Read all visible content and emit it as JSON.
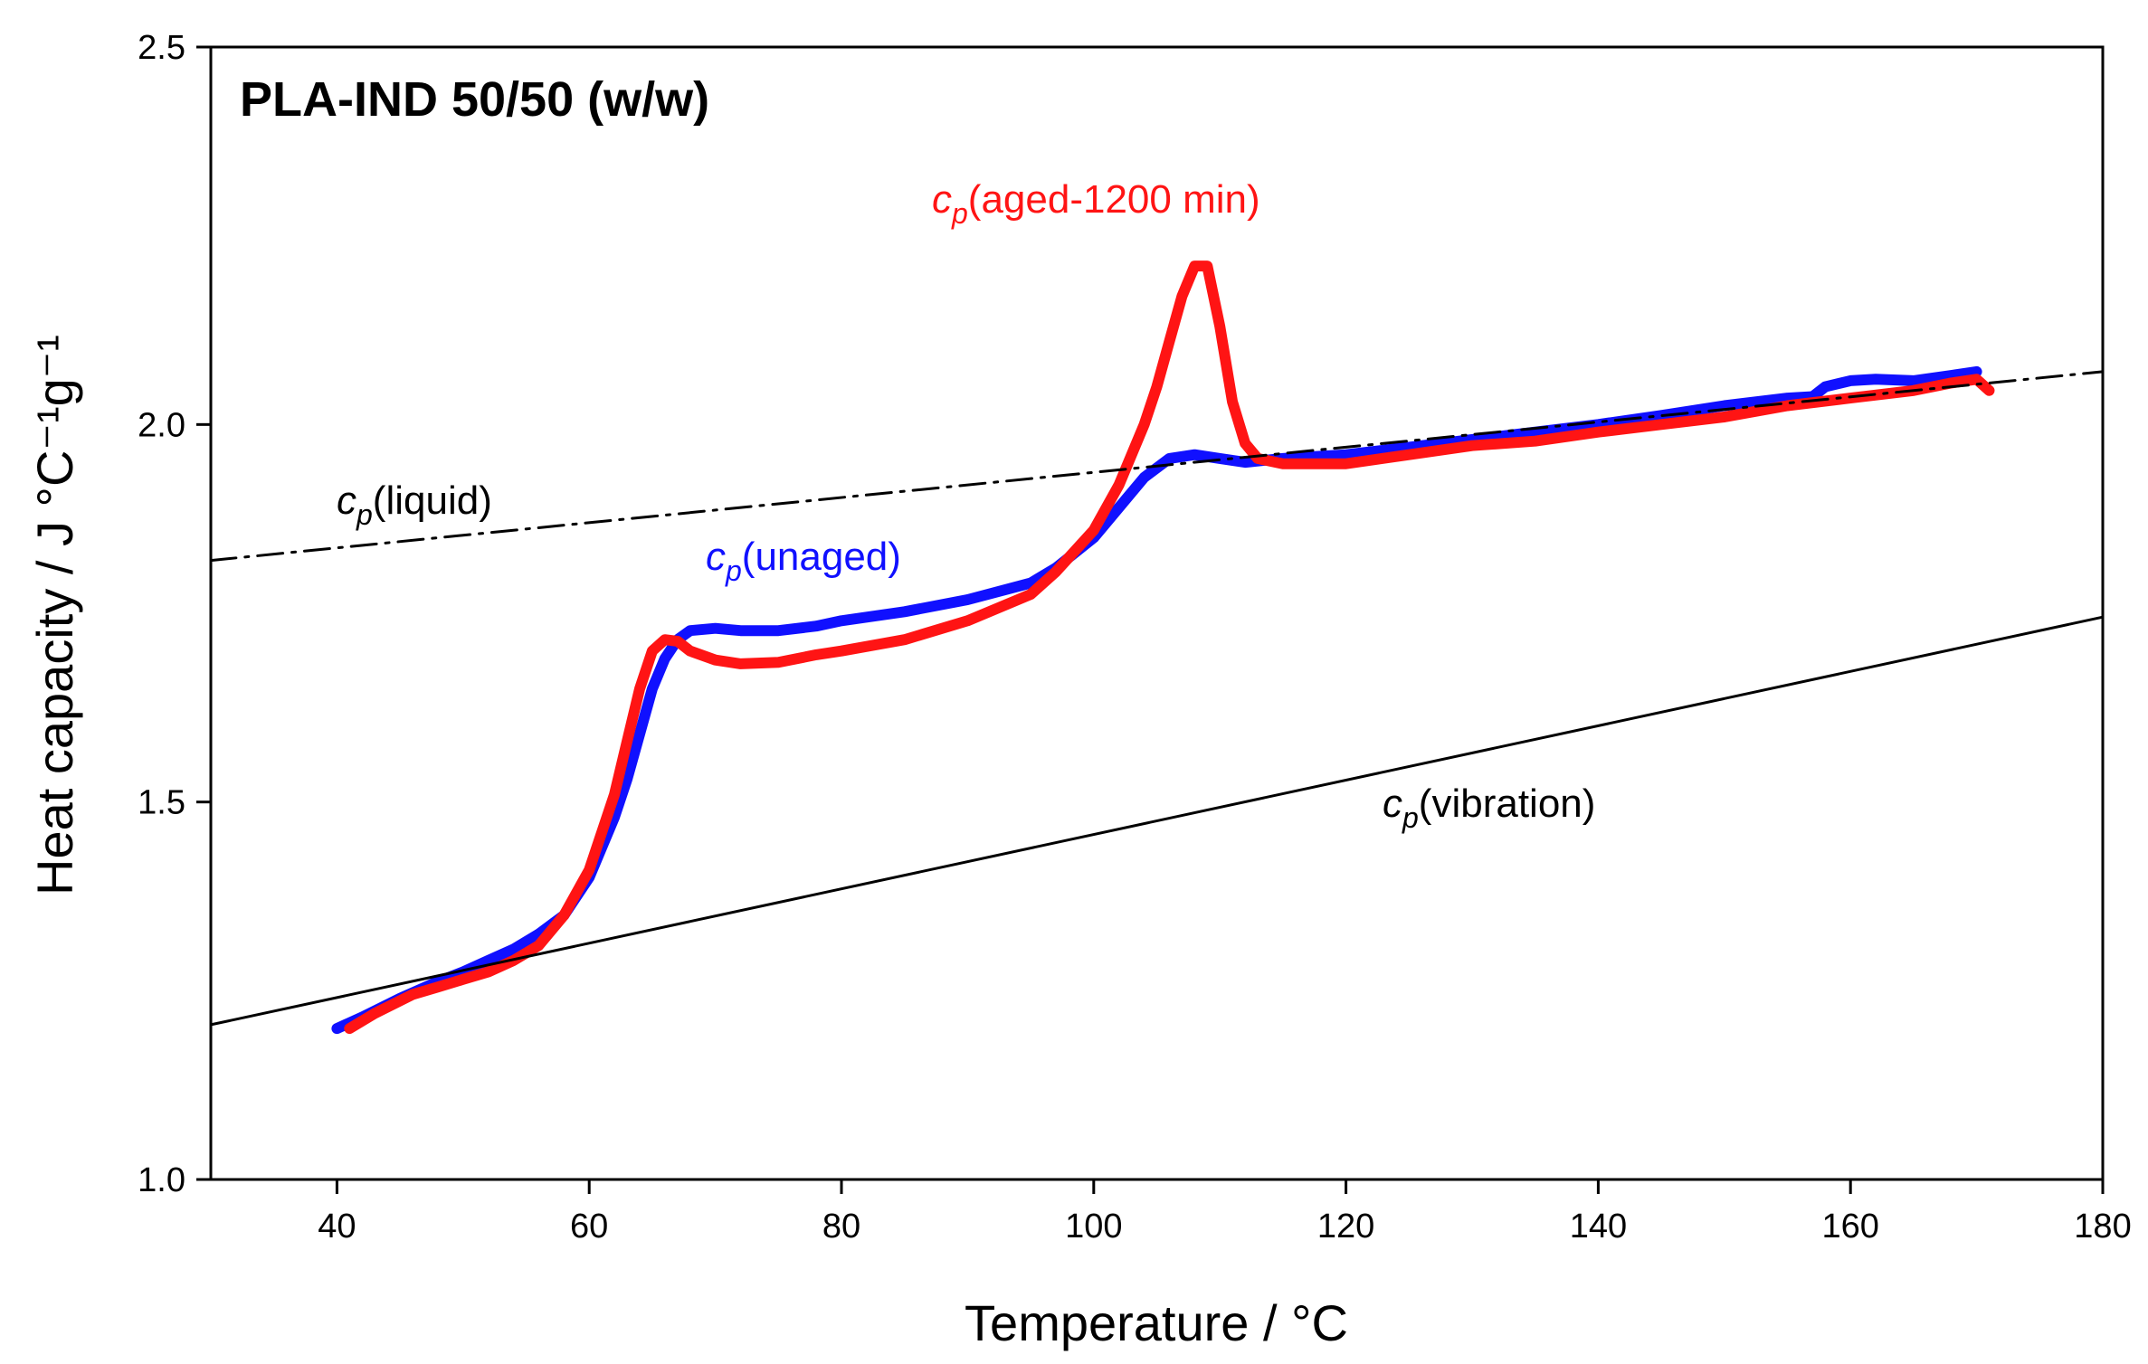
{
  "chart_data": {
    "type": "line",
    "title": "PLA-IND 50/50 (w/w)",
    "xlabel": "Temperature / °C",
    "ylabel": "Heat capacity / J °C⁻¹g⁻¹",
    "xlim": [
      30,
      180
    ],
    "ylim": [
      1.0,
      2.5
    ],
    "xticks": [
      40,
      60,
      80,
      100,
      120,
      140,
      160,
      180
    ],
    "yticks": [
      1.0,
      1.5,
      2.0,
      2.5
    ],
    "xtick_labels": [
      "40",
      "60",
      "80",
      "100",
      "120",
      "140",
      "160",
      "180"
    ],
    "ytick_labels": [
      "1.0",
      "1.5",
      "2.0",
      "2.5"
    ],
    "grid": false,
    "legend": "none",
    "series": [
      {
        "name": "cp(unaged)",
        "color": "#1010ff",
        "x": [
          40,
          42,
          45,
          48,
          50,
          52,
          54,
          56,
          58,
          60,
          62,
          63,
          64,
          65,
          66,
          67,
          68,
          70,
          72,
          75,
          78,
          80,
          85,
          90,
          95,
          97,
          100,
          102,
          104,
          106,
          108,
          110,
          112,
          115,
          120,
          125,
          130,
          135,
          140,
          145,
          150,
          155,
          157,
          158,
          160,
          162,
          165,
          168,
          170
        ],
        "y": [
          1.2,
          1.215,
          1.24,
          1.262,
          1.275,
          1.29,
          1.305,
          1.325,
          1.35,
          1.4,
          1.48,
          1.53,
          1.59,
          1.65,
          1.69,
          1.715,
          1.727,
          1.73,
          1.727,
          1.727,
          1.733,
          1.74,
          1.752,
          1.768,
          1.79,
          1.81,
          1.85,
          1.89,
          1.93,
          1.955,
          1.96,
          1.955,
          1.95,
          1.955,
          1.96,
          1.97,
          1.98,
          1.99,
          2.0,
          2.012,
          2.025,
          2.035,
          2.037,
          2.05,
          2.058,
          2.06,
          2.058,
          2.065,
          2.07
        ]
      },
      {
        "name": "cp(aged-1200 min)",
        "color": "#ff1414",
        "x": [
          41,
          43,
          46,
          48,
          50,
          52,
          54,
          56,
          58,
          60,
          62,
          63,
          64,
          65,
          66,
          67,
          68,
          70,
          72,
          75,
          78,
          80,
          85,
          90,
          95,
          97,
          100,
          102,
          104,
          105,
          106,
          107,
          108,
          109,
          110,
          111,
          112,
          113,
          115,
          120,
          125,
          130,
          135,
          140,
          145,
          150,
          155,
          160,
          165,
          168,
          170,
          171
        ],
        "y": [
          1.2,
          1.22,
          1.245,
          1.255,
          1.265,
          1.275,
          1.29,
          1.31,
          1.35,
          1.41,
          1.51,
          1.58,
          1.65,
          1.7,
          1.715,
          1.713,
          1.7,
          1.688,
          1.683,
          1.685,
          1.695,
          1.7,
          1.715,
          1.74,
          1.775,
          1.805,
          1.86,
          1.92,
          2.0,
          2.05,
          2.11,
          2.17,
          2.21,
          2.21,
          2.13,
          2.03,
          1.975,
          1.955,
          1.948,
          1.948,
          1.96,
          1.972,
          1.978,
          1.99,
          2.0,
          2.01,
          2.025,
          2.035,
          2.045,
          2.055,
          2.06,
          2.045
        ]
      },
      {
        "name": "cp(liquid)",
        "color": "#000000",
        "style": "dash-dot",
        "x": [
          30,
          180
        ],
        "y": [
          1.82,
          2.07
        ]
      },
      {
        "name": "cp(vibration)",
        "color": "#000000",
        "style": "solid",
        "x": [
          30,
          180
        ],
        "y": [
          1.205,
          1.745
        ]
      }
    ],
    "annotations": [
      {
        "symbol": "c",
        "subscript": "p",
        "text": "(aged-1200 min)",
        "color": "#ff1414"
      },
      {
        "symbol": "c",
        "subscript": "p",
        "text": "(liquid)",
        "color": "#000000"
      },
      {
        "symbol": "c",
        "subscript": "p",
        "text": "(unaged)",
        "color": "#1010ff"
      },
      {
        "symbol": "c",
        "subscript": "p",
        "text": "(vibration)",
        "color": "#000000"
      }
    ]
  }
}
